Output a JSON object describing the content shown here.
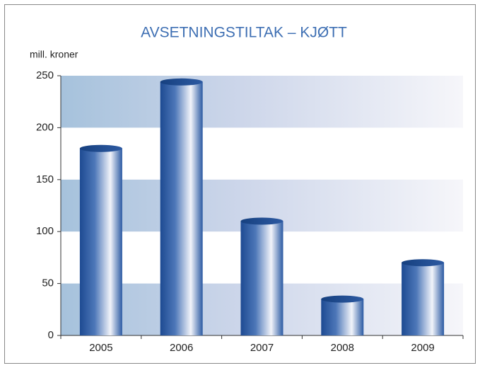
{
  "chart_data": {
    "type": "bar",
    "title": "AVSETNINGSTILTAK – KJØTT",
    "y_label": "mill. kroner",
    "categories": [
      "2005",
      "2006",
      "2007",
      "2008",
      "2009"
    ],
    "values": [
      180,
      244,
      110,
      35,
      70
    ],
    "color": "#2a5aa0",
    "ylim": [
      0,
      250
    ],
    "yticks": [
      0,
      50,
      100,
      150,
      200,
      250
    ]
  }
}
